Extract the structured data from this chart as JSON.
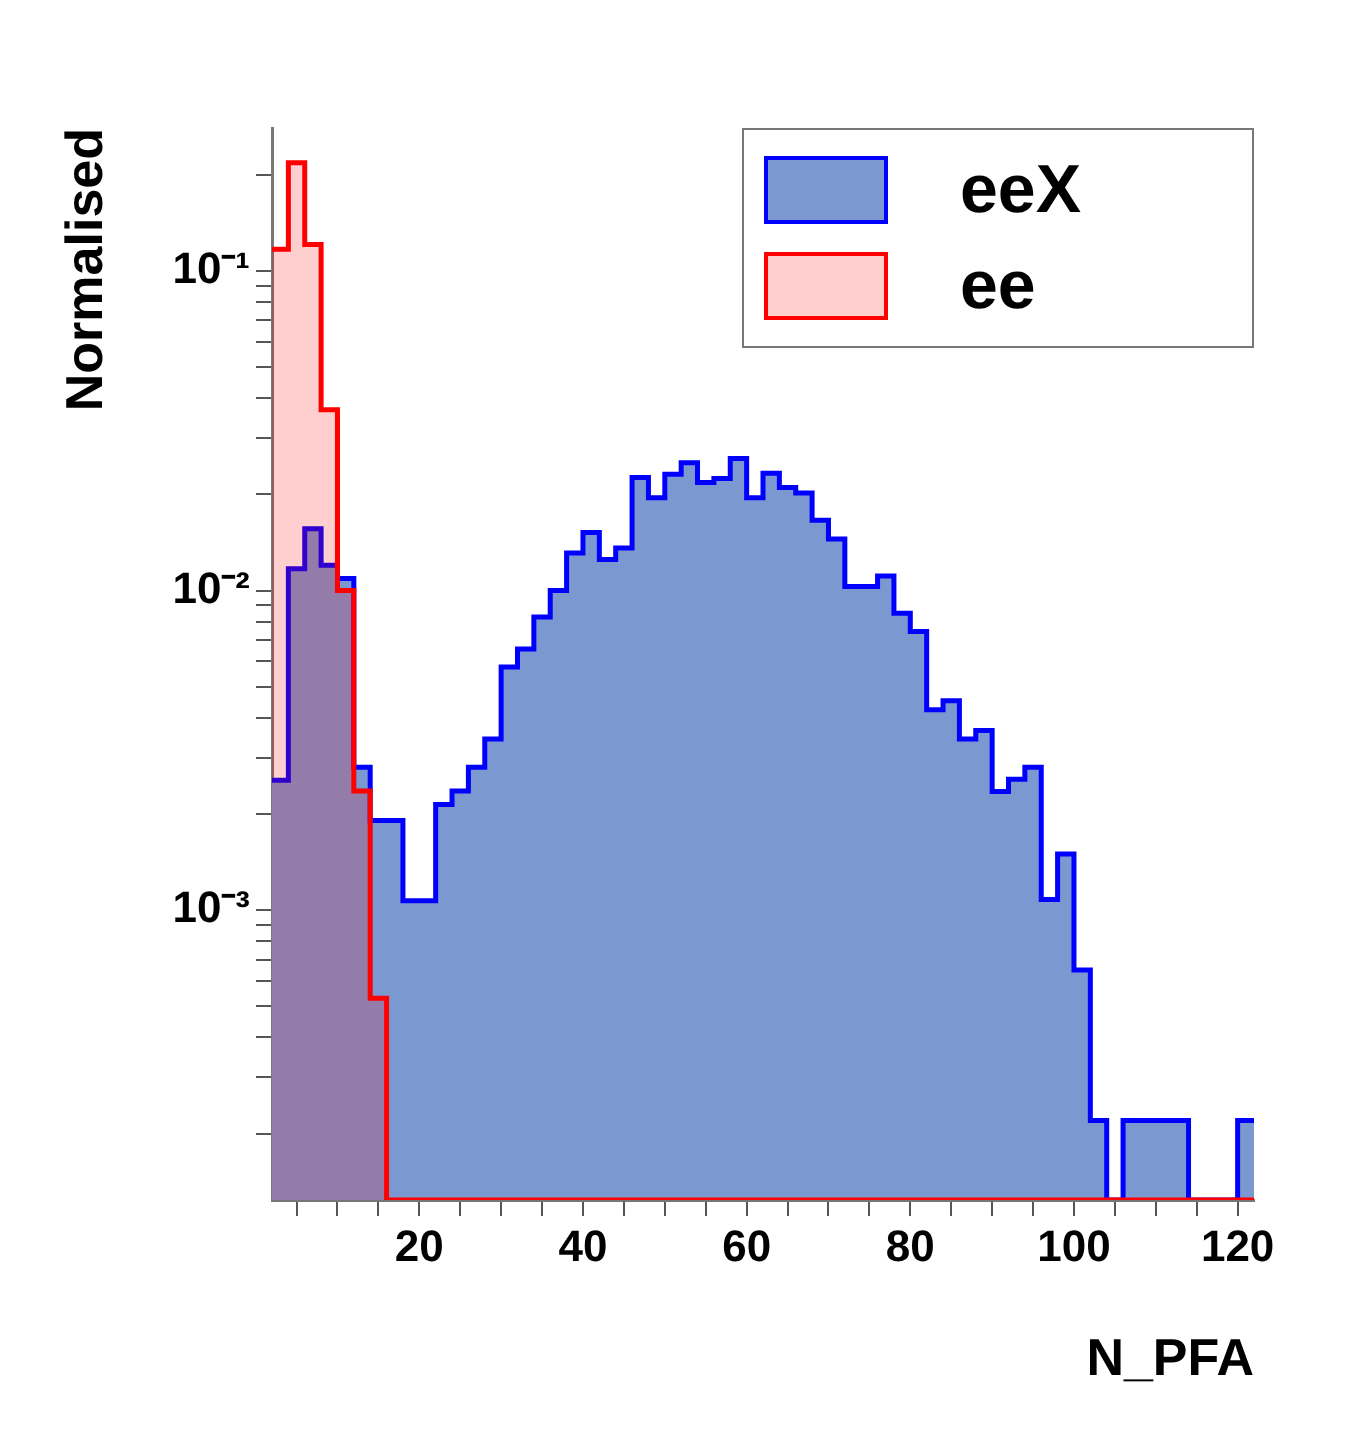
{
  "chart_data": {
    "type": "histogram",
    "xlabel": "N_PFA",
    "ylabel": "Normalised",
    "bins": [
      2,
      4,
      6,
      8,
      10,
      12,
      14,
      16,
      18,
      20,
      22,
      24,
      26,
      28,
      30,
      32,
      34,
      36,
      38,
      40,
      42,
      44,
      46,
      48,
      50,
      52,
      54,
      56,
      58,
      60,
      62,
      64,
      66,
      68,
      70,
      72,
      74,
      76,
      78,
      80,
      82,
      84,
      86,
      88,
      90,
      92,
      94,
      96,
      98,
      100,
      102,
      104,
      106,
      108,
      110,
      112,
      114,
      116,
      118,
      120,
      122
    ],
    "series": [
      {
        "name": "eeX",
        "color": "#7b99d0",
        "values": [
          0.00255,
          0.0117,
          0.0156,
          0.012,
          0.0109,
          0.0028,
          0.00191,
          0.00191,
          0.00107,
          0.00107,
          0.00214,
          0.00236,
          0.0028,
          0.00343,
          0.00577,
          0.00656,
          0.00826,
          0.01,
          0.0131,
          0.0152,
          0.0125,
          0.0136,
          0.0226,
          0.0195,
          0.0231,
          0.0251,
          0.0218,
          0.0224,
          0.0259,
          0.0195,
          0.0233,
          0.021,
          0.0202,
          0.0166,
          0.0145,
          0.0103,
          0.0103,
          0.0111,
          0.0085,
          0.00745,
          0.00424,
          0.00452,
          0.00343,
          0.00365,
          0.00235,
          0.00257,
          0.0028,
          0.00108,
          0.0015,
          0.00065,
          0.00022,
          null,
          0.00022,
          0.00022,
          0.00022,
          0.00022,
          null,
          null,
          null,
          0.00022
        ]
      },
      {
        "name": "ee",
        "color": "#ff0000",
        "values": [
          0.117,
          0.218,
          0.121,
          0.0368,
          0.01,
          0.00236,
          0.00053,
          null,
          null,
          null,
          null,
          null,
          null,
          null,
          null,
          null,
          null,
          null,
          null,
          null,
          null,
          null,
          null,
          null,
          null,
          null,
          null,
          null,
          null,
          null,
          null,
          null,
          null,
          null,
          null,
          null,
          null,
          null,
          null,
          null,
          null,
          null,
          null,
          null,
          null,
          null,
          null,
          null,
          null,
          null,
          null,
          null,
          null,
          null,
          null,
          null,
          null,
          null,
          null,
          null
        ]
      }
    ],
    "log": "y",
    "xlim": [
      2,
      122
    ],
    "ylim": [
      0.000124,
      0.28
    ],
    "xticks": [
      {
        "value": 5,
        "label": null
      },
      {
        "value": 10,
        "label": null
      },
      {
        "value": 15,
        "label": null
      },
      20,
      {
        "value": 25,
        "label": null
      },
      {
        "value": 30,
        "label": null
      },
      {
        "value": 35,
        "label": null
      },
      40,
      {
        "value": 45,
        "label": null
      },
      {
        "value": 50,
        "label": null
      },
      {
        "value": 55,
        "label": null
      },
      60,
      {
        "value": 65,
        "label": null
      },
      {
        "value": 70,
        "label": null
      },
      {
        "value": 75,
        "label": null
      },
      80,
      {
        "value": 85,
        "label": null
      },
      {
        "value": 90,
        "label": null
      },
      {
        "value": 95,
        "label": null
      },
      100,
      {
        "value": 105,
        "label": null
      },
      {
        "value": 110,
        "label": null
      },
      {
        "value": 115,
        "label": null
      },
      120
    ],
    "yticks": [
      {
        "value": 0.0002,
        "label": null
      },
      {
        "value": 0.0003,
        "label": null
      },
      {
        "value": 0.0004,
        "label": null
      },
      {
        "value": 0.0005,
        "label": null
      },
      {
        "value": 0.0006,
        "label": null
      },
      {
        "value": 0.0007,
        "label": null
      },
      {
        "value": 0.0008,
        "label": null
      },
      {
        "value": 0.0009,
        "label": null
      },
      {
        "value": 0.001,
        "label": "10⁻³"
      },
      {
        "value": 0.002,
        "label": null
      },
      {
        "value": 0.003,
        "label": null
      },
      {
        "value": 0.004,
        "label": null
      },
      {
        "value": 0.005,
        "label": null
      },
      {
        "value": 0.006,
        "label": null
      },
      {
        "value": 0.007,
        "label": null
      },
      {
        "value": 0.008,
        "label": null
      },
      {
        "value": 0.009,
        "label": null
      },
      {
        "value": 0.01,
        "label": "10⁻²"
      },
      {
        "value": 0.02,
        "label": null
      },
      {
        "value": 0.03,
        "label": null
      },
      {
        "value": 0.04,
        "label": null
      },
      {
        "value": 0.05,
        "label": null
      },
      {
        "value": 0.06,
        "label": null
      },
      {
        "value": 0.07,
        "label": null
      },
      {
        "value": 0.08,
        "label": null
      },
      {
        "value": 0.09,
        "label": null
      },
      {
        "value": 0.1,
        "label": "10⁻¹"
      },
      {
        "value": 0.2,
        "label": null
      }
    ],
    "grid": false,
    "legend": "top right"
  }
}
